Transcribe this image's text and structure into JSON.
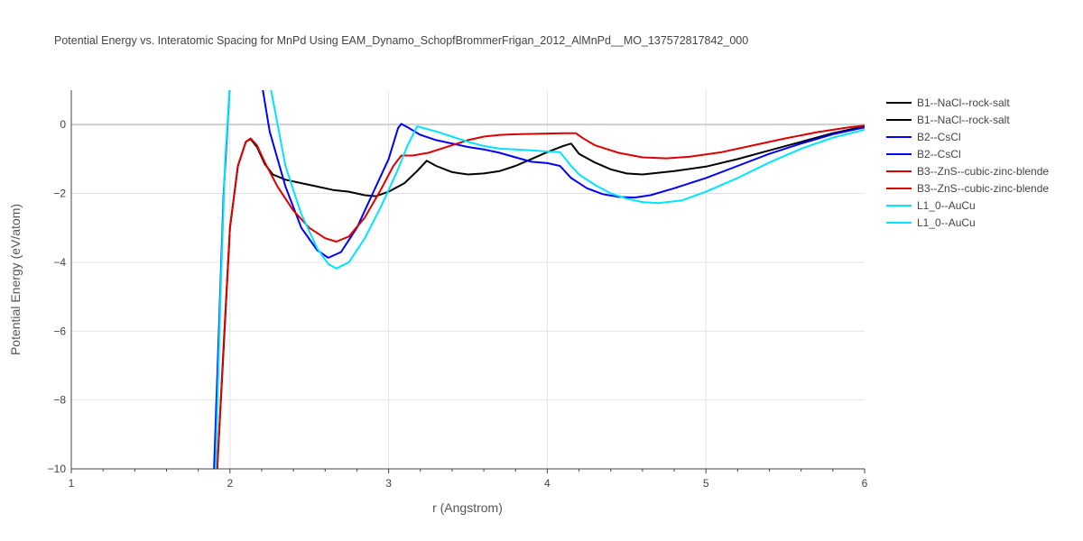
{
  "chart_data": {
    "type": "line",
    "title": "Potential Energy vs. Interatomic Spacing for MnPd Using EAM_Dynamo_SchopfBrommerFrigan_2012_AlMnPd__MO_137572817842_000",
    "xlabel": "r (Angstrom)",
    "ylabel": "Potential Energy (eV/atom)",
    "xlim": [
      1,
      6
    ],
    "ylim": [
      -10,
      1
    ],
    "xticks": [
      "1",
      "2",
      "3",
      "4",
      "5",
      "6"
    ],
    "yticks": [
      "0",
      "−2",
      "−4",
      "−6",
      "−8",
      "−10"
    ],
    "grid": true,
    "legend_position": "right",
    "series": [
      {
        "name": "B1--NaCl--rock-salt",
        "color": "#000000",
        "x": [
          1.92,
          1.96,
          2.0,
          2.05,
          2.1,
          2.13,
          2.17,
          2.22,
          2.27,
          2.35,
          2.45,
          2.55,
          2.65,
          2.75,
          2.85,
          2.92,
          3.0,
          3.1,
          3.18,
          3.24,
          3.3,
          3.4,
          3.5,
          3.6,
          3.7,
          3.8,
          3.9,
          4.0,
          4.1,
          4.15,
          4.2,
          4.3,
          4.4,
          4.5,
          4.6,
          4.8,
          5.0,
          5.2,
          5.4,
          5.6,
          5.8,
          6.0
        ],
        "y": [
          -10,
          -6.5,
          -3.0,
          -1.2,
          -0.5,
          -0.42,
          -0.65,
          -1.15,
          -1.45,
          -1.6,
          -1.7,
          -1.8,
          -1.9,
          -1.95,
          -2.05,
          -2.08,
          -1.95,
          -1.7,
          -1.35,
          -1.05,
          -1.2,
          -1.38,
          -1.45,
          -1.42,
          -1.35,
          -1.2,
          -1.0,
          -0.8,
          -0.62,
          -0.55,
          -0.85,
          -1.1,
          -1.3,
          -1.42,
          -1.45,
          -1.35,
          -1.22,
          -1.0,
          -0.75,
          -0.5,
          -0.25,
          -0.05
        ]
      },
      {
        "name": "B2--CsCl",
        "color": "#0000ff",
        "x": [
          1.9,
          1.93,
          1.96,
          2.0,
          2.2,
          2.25,
          2.35,
          2.45,
          2.55,
          2.62,
          2.7,
          2.8,
          2.9,
          3.0,
          3.06,
          3.08,
          3.12,
          3.2,
          3.3,
          3.4,
          3.5,
          3.6,
          3.7,
          3.8,
          3.9,
          4.0,
          4.08,
          4.15,
          4.25,
          4.35,
          4.45,
          4.55,
          4.65,
          4.8,
          5.0,
          5.2,
          5.4,
          5.6,
          5.8,
          6.0
        ],
        "y": [
          -10,
          -6.0,
          -2.0,
          1.2,
          1.2,
          -0.2,
          -1.8,
          -3.0,
          -3.65,
          -3.87,
          -3.7,
          -3.0,
          -2.0,
          -1.0,
          -0.1,
          0.02,
          -0.08,
          -0.3,
          -0.45,
          -0.55,
          -0.65,
          -0.72,
          -0.82,
          -0.95,
          -1.08,
          -1.12,
          -1.2,
          -1.55,
          -1.85,
          -2.02,
          -2.1,
          -2.12,
          -2.05,
          -1.85,
          -1.55,
          -1.2,
          -0.85,
          -0.55,
          -0.28,
          -0.08
        ]
      },
      {
        "name": "B3--ZnS--cubic-zinc-blende",
        "color": "#dd0000",
        "x": [
          1.92,
          1.96,
          2.0,
          2.05,
          2.1,
          2.13,
          2.17,
          2.22,
          2.3,
          2.4,
          2.5,
          2.6,
          2.67,
          2.75,
          2.85,
          2.95,
          3.03,
          3.08,
          3.15,
          3.25,
          3.4,
          3.5,
          3.6,
          3.7,
          3.8,
          3.9,
          4.0,
          4.1,
          4.18,
          4.22,
          4.3,
          4.45,
          4.6,
          4.75,
          4.9,
          5.1,
          5.3,
          5.5,
          5.7,
          5.9,
          6.0
        ],
        "y": [
          -10,
          -6.4,
          -3.0,
          -1.2,
          -0.5,
          -0.4,
          -0.6,
          -1.1,
          -1.8,
          -2.5,
          -3.0,
          -3.3,
          -3.4,
          -3.25,
          -2.7,
          -1.9,
          -1.2,
          -0.9,
          -0.9,
          -0.82,
          -0.6,
          -0.45,
          -0.35,
          -0.3,
          -0.28,
          -0.27,
          -0.26,
          -0.25,
          -0.25,
          -0.38,
          -0.6,
          -0.82,
          -0.95,
          -0.98,
          -0.93,
          -0.8,
          -0.6,
          -0.4,
          -0.22,
          -0.08,
          -0.03
        ]
      },
      {
        "name": "L1_0--AuCu",
        "color": "#00e5ff",
        "x": [
          1.91,
          1.94,
          1.97,
          2.0,
          2.25,
          2.28,
          2.35,
          2.45,
          2.55,
          2.62,
          2.67,
          2.75,
          2.85,
          2.95,
          3.05,
          3.12,
          3.18,
          3.3,
          3.4,
          3.5,
          3.6,
          3.7,
          3.8,
          3.9,
          4.0,
          4.08,
          4.15,
          4.2,
          4.3,
          4.4,
          4.5,
          4.6,
          4.7,
          4.85,
          5.0,
          5.2,
          5.4,
          5.6,
          5.8,
          6.0
        ],
        "y": [
          -10,
          -5.0,
          -1.0,
          1.2,
          1.2,
          0.5,
          -1.2,
          -2.6,
          -3.6,
          -4.05,
          -4.18,
          -4.0,
          -3.3,
          -2.4,
          -1.4,
          -0.6,
          -0.05,
          -0.2,
          -0.35,
          -0.5,
          -0.62,
          -0.7,
          -0.72,
          -0.75,
          -0.78,
          -0.8,
          -1.2,
          -1.45,
          -1.75,
          -2.0,
          -2.15,
          -2.25,
          -2.28,
          -2.2,
          -1.95,
          -1.55,
          -1.1,
          -0.7,
          -0.38,
          -0.15
        ]
      }
    ]
  },
  "legend": [
    {
      "label": "B1--NaCl--rock-salt",
      "color": "#000000"
    },
    {
      "label": "B1--NaCl--rock-salt",
      "color": "#000000"
    },
    {
      "label": "B2--CsCl",
      "color": "#0000ff"
    },
    {
      "label": "B2--CsCl",
      "color": "#0000ff"
    },
    {
      "label": "B3--ZnS--cubic-zinc-blende",
      "color": "#dd0000"
    },
    {
      "label": "B3--ZnS--cubic-zinc-blende",
      "color": "#dd0000"
    },
    {
      "label": "L1_0--AuCu",
      "color": "#00e5ff"
    },
    {
      "label": "L1_0--AuCu",
      "color": "#00e5ff"
    }
  ]
}
